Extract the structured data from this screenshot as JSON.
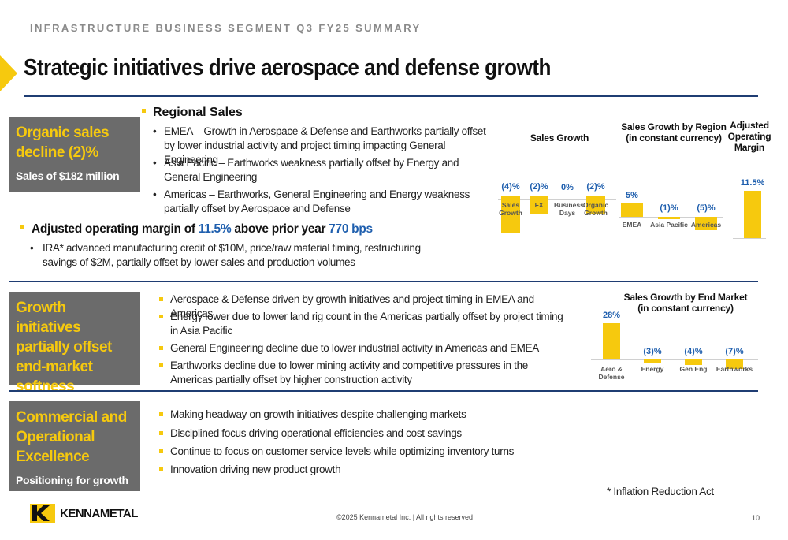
{
  "header": {
    "kicker": "INFRASTRUCTURE BUSINESS SEGMENT Q3 FY25 SUMMARY",
    "title": "Strategic initiatives drive aerospace and defense growth"
  },
  "section1": {
    "box_head": "Organic sales decline (2)%",
    "box_sub": "Sales of $182 million",
    "regional_head": "Regional Sales",
    "regional_bullets": [
      "EMEA – Growth in Aerospace & Defense and Earthworks partially offset by lower industrial activity and project timing impacting General Engineering",
      "Asia Pacific – Earthworks weakness partially offset by Energy and General Engineering",
      "Americas – Earthworks, General Engineering and Energy weakness partially offset by Aerospace and Defense"
    ],
    "adj_prefix": "Adjusted operating margin of",
    "adj_value": "11.5%",
    "adj_mid": "above prior year",
    "adj_bps": "770 bps",
    "adj_sub": "IRA* advanced manufacturing credit of $10M, price/raw material timing, restructuring savings of $2M, partially offset by lower sales and production volumes"
  },
  "section2": {
    "box_head": "Growth initiatives partially offset end-market softness",
    "bullets": [
      "Aerospace & Defense driven by growth initiatives and project timing in EMEA and Americas",
      "Energy lower due to lower land rig count in the Americas partially offset by project timing in Asia Pacific",
      "General Engineering decline due to lower industrial activity in Americas and EMEA",
      "Earthworks decline due to lower mining activity and competitive pressures in the Americas partially offset by higher construction activity"
    ]
  },
  "section3": {
    "box_head": "Commercial and Operational Excellence",
    "box_sub": "Positioning for growth",
    "bullets": [
      "Making headway on growth initiatives despite challenging markets",
      "Disciplined focus driving operational efficiencies and cost savings",
      "Continue to focus on customer service levels while optimizing inventory turns",
      "Innovation driving new product growth"
    ]
  },
  "chart_data": [
    {
      "type": "bar",
      "title": "Sales Growth",
      "categories": [
        "Sales Growth",
        "FX",
        "Business Days",
        "Organic Growth"
      ],
      "values": [
        -4,
        -2,
        0,
        -2
      ],
      "labels": [
        "(4)%",
        "(2)%",
        "0%",
        "(2)%"
      ]
    },
    {
      "type": "bar",
      "title": "Sales Growth by Region (in constant currency)",
      "categories": [
        "EMEA",
        "Asia Pacific",
        "Americas"
      ],
      "values": [
        5,
        -1,
        -5
      ],
      "labels": [
        "5%",
        "(1)%",
        "(5)%"
      ]
    },
    {
      "type": "bar",
      "title": "Adjusted Operating Margin",
      "categories": [
        ""
      ],
      "values": [
        11.5
      ],
      "labels": [
        "11.5%"
      ]
    },
    {
      "type": "bar",
      "title": "Sales Growth by End Market (in constant currency)",
      "categories": [
        "Aero & Defense",
        "Energy",
        "Gen Eng",
        "Earthworks"
      ],
      "values": [
        28,
        -3,
        -4,
        -7
      ],
      "labels": [
        "28%",
        "(3)%",
        "(4)%",
        "(7)%"
      ]
    }
  ],
  "footer": {
    "ira_note": "* Inflation Reduction Act",
    "copyright": "©2025 Kennametal Inc.  |  All rights reserved",
    "page": "10",
    "wordmark": "KENNAMETAL"
  },
  "colors": {
    "accent": "#f6c90e",
    "navy": "#1f3d73",
    "value_blue": "#1f5fae",
    "box_gray": "#6b6b6b"
  }
}
